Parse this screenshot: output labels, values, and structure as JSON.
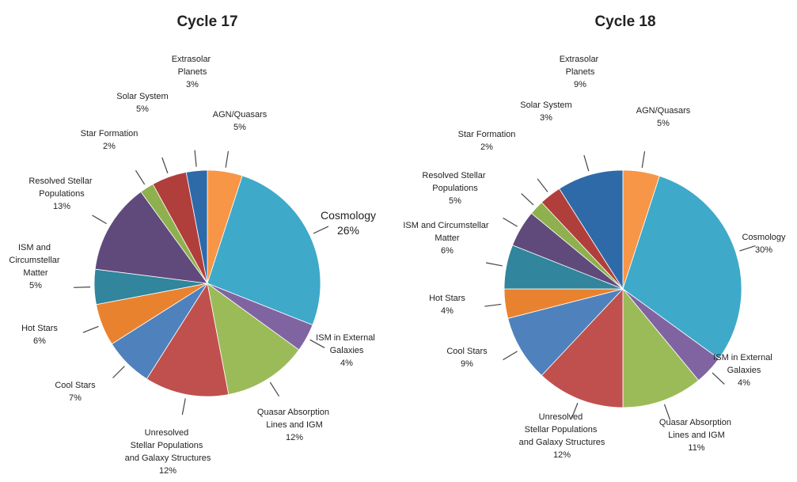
{
  "chart_data": [
    {
      "type": "pie",
      "title": "Cycle 17",
      "categories": [
        "AGN/Quasars",
        "Cosmology",
        "ISM in External Galaxies",
        "Quasar Absorption Lines and IGM",
        "Unresolved Stellar Populations and Galaxy Structures",
        "Cool Stars",
        "Hot Stars",
        "ISM and Circumstellar Matter",
        "Resolved Stellar Populations",
        "Star Formation",
        "Solar System",
        "Extrasolar Planets"
      ],
      "values": [
        5,
        26,
        4,
        12,
        12,
        7,
        6,
        5,
        13,
        2,
        5,
        3
      ],
      "value_labels": [
        "5%",
        "26%",
        "4%",
        "12%",
        "12%",
        "7%",
        "6%",
        "5%",
        "13%",
        "2%",
        "5%",
        "3%"
      ],
      "colors": [
        "#f79646",
        "#3fa9c9",
        "#8064a2",
        "#9bbb59",
        "#c0504d",
        "#4f81bd",
        "#e9822f",
        "#31859c",
        "#604a7b",
        "#8fb04e",
        "#b03f3c",
        "#2f6aa8"
      ]
    },
    {
      "type": "pie",
      "title": "Cycle 18",
      "categories": [
        "AGN/Quasars",
        "Cosmology",
        "ISM in External Galaxies",
        "Quasar Absorption Lines and IGM",
        "Unresolved Stellar Populations and Galaxy Structures",
        "Cool Stars",
        "Hot Stars",
        "ISM and Circumstellar Matter",
        "Resolved Stellar Populations",
        "Star Formation",
        "Solar System",
        "Extrasolar Planets"
      ],
      "values": [
        5,
        30,
        4,
        11,
        12,
        9,
        4,
        6,
        5,
        2,
        3,
        9
      ],
      "value_labels": [
        "5%",
        "30%",
        "4%",
        "11%",
        "12%",
        "9%",
        "4%",
        "6%",
        "5%",
        "2%",
        "3%",
        "9%"
      ],
      "colors": [
        "#f79646",
        "#3fa9c9",
        "#8064a2",
        "#9bbb59",
        "#c0504d",
        "#4f81bd",
        "#e9822f",
        "#31859c",
        "#604a7b",
        "#8fb04e",
        "#b03f3c",
        "#2f6aa8"
      ]
    }
  ]
}
